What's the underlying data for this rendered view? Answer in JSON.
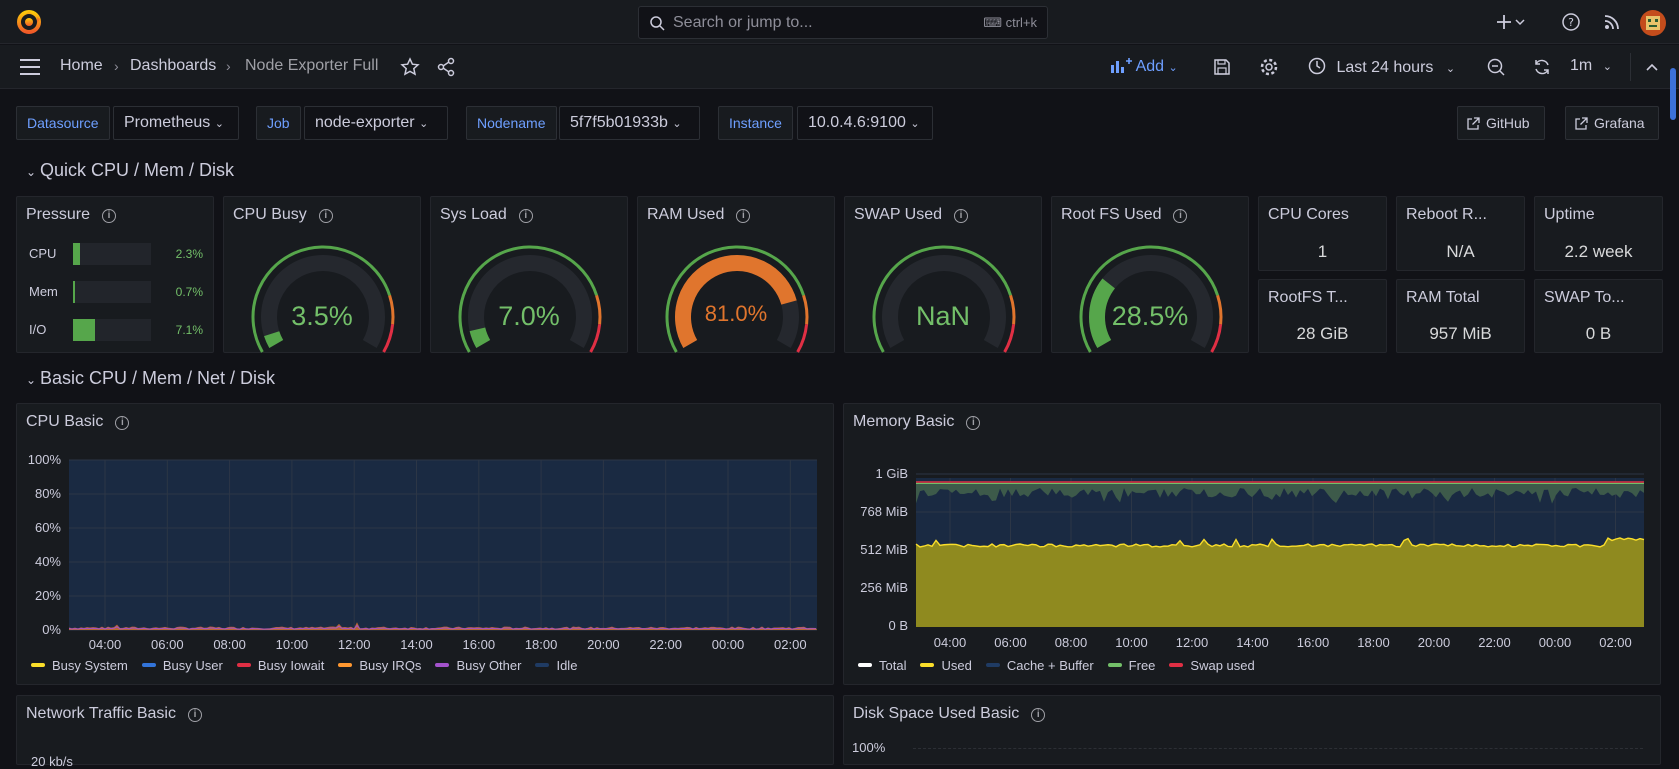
{
  "topbar": {
    "search_placeholder": "Search or jump to...",
    "search_shortcut": "ctrl+k",
    "icons": [
      "grafana-logo",
      "search-icon",
      "plus-icon",
      "help-icon",
      "news-icon",
      "avatar"
    ]
  },
  "breadcrumb": {
    "home": "Home",
    "dashboards": "Dashboards",
    "current": "Node Exporter Full"
  },
  "toolbar": {
    "add_label": "Add",
    "time_range": "Last 24 hours",
    "refresh_interval": "1m"
  },
  "variables": [
    {
      "label": "Datasource",
      "value": "Prometheus"
    },
    {
      "label": "Job",
      "value": "node-exporter"
    },
    {
      "label": "Nodename",
      "value": "5f7f5b01933b"
    },
    {
      "label": "Instance",
      "value": "10.0.4.6:9100"
    }
  ],
  "links": {
    "github": "GitHub",
    "grafana": "Grafana"
  },
  "rows": {
    "quick": "Quick CPU / Mem / Disk",
    "basic": "Basic CPU / Mem / Net / Disk"
  },
  "pressure": {
    "title": "Pressure",
    "items": [
      {
        "label": "CPU",
        "value": "2.3%",
        "fraction": 0.023
      },
      {
        "label": "Mem",
        "value": "0.7%",
        "fraction": 0.007
      },
      {
        "label": "I/O",
        "value": "7.1%",
        "fraction": 0.071
      }
    ]
  },
  "gauges": [
    {
      "title": "CPU Busy",
      "value": "3.5%",
      "fraction": 0.035,
      "color": "#56a64b"
    },
    {
      "title": "Sys Load",
      "value": "7.0%",
      "fraction": 0.07,
      "color": "#56a64b"
    },
    {
      "title": "RAM Used",
      "value": "81.0%",
      "fraction": 0.81,
      "color": "#e0752d"
    },
    {
      "title": "SWAP Used",
      "value": "NaN",
      "fraction": 0,
      "color": "#56a64b"
    },
    {
      "title": "Root FS Used",
      "value": "28.5%",
      "fraction": 0.285,
      "color": "#56a64b"
    }
  ],
  "stats": [
    {
      "title": "CPU Cores",
      "value": "1"
    },
    {
      "title": "Reboot R...",
      "value": "N/A"
    },
    {
      "title": "Uptime",
      "value": "2.2 week"
    },
    {
      "title": "RootFS T...",
      "value": "28 GiB"
    },
    {
      "title": "RAM Total",
      "value": "957 MiB"
    },
    {
      "title": "SWAP To...",
      "value": "0 B"
    }
  ],
  "cpu_basic": {
    "title": "CPU Basic",
    "yticks": [
      "100%",
      "80%",
      "60%",
      "40%",
      "20%",
      "0%"
    ],
    "xticks": [
      "04:00",
      "06:00",
      "08:00",
      "10:00",
      "12:00",
      "14:00",
      "16:00",
      "18:00",
      "20:00",
      "22:00",
      "00:00",
      "02:00"
    ],
    "legend": [
      {
        "name": "Busy System",
        "color": "#fade2a"
      },
      {
        "name": "Busy User",
        "color": "#3274d9"
      },
      {
        "name": "Busy Iowait",
        "color": "#e02f44"
      },
      {
        "name": "Busy IRQs",
        "color": "#ff9830"
      },
      {
        "name": "Busy Other",
        "color": "#a352cc"
      },
      {
        "name": "Idle",
        "color": "#1f3b63"
      }
    ]
  },
  "memory_basic": {
    "title": "Memory Basic",
    "yticks": [
      "1 GiB",
      "768 MiB",
      "512 MiB",
      "256 MiB",
      "0 B"
    ],
    "xticks": [
      "04:00",
      "06:00",
      "08:00",
      "10:00",
      "12:00",
      "14:00",
      "16:00",
      "18:00",
      "20:00",
      "22:00",
      "00:00",
      "02:00"
    ],
    "legend": [
      {
        "name": "Total",
        "color": "#ffffff"
      },
      {
        "name": "Used",
        "color": "#fade2a"
      },
      {
        "name": "Cache + Buffer",
        "color": "#1f3b63"
      },
      {
        "name": "Free",
        "color": "#73bf69"
      },
      {
        "name": "Swap used",
        "color": "#e02f44"
      }
    ]
  },
  "network_basic": {
    "title": "Network Traffic Basic",
    "first_tick": "20 kb/s"
  },
  "disk_basic": {
    "title": "Disk Space Used Basic",
    "first_tick": "100%"
  }
}
